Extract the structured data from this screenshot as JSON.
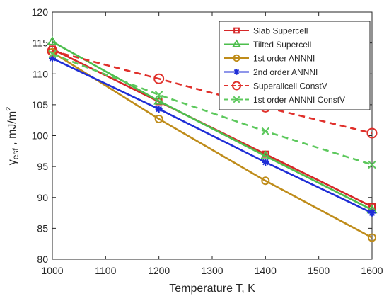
{
  "chart_data": {
    "type": "line",
    "title": "",
    "xlabel": "Temperature T, K",
    "ylabel": {
      "symbol": "γ",
      "subscript": "esf",
      "rest": " , mJ/m",
      "superscript": "2"
    },
    "xlim": [
      1000,
      1600
    ],
    "ylim": [
      80,
      120
    ],
    "x": [
      1000,
      1200,
      1400,
      1600
    ],
    "xticks": [
      "1000",
      "1100",
      "1200",
      "1300",
      "1400",
      "1500",
      "1600"
    ],
    "yticks": [
      "80",
      "85",
      "90",
      "95",
      "100",
      "105",
      "110",
      "115",
      "120"
    ],
    "grid": false,
    "legend_position": "top-right",
    "series": [
      {
        "name": "Slab Supercell",
        "values": [
          114.0,
          105.5,
          97.0,
          88.5
        ],
        "color": "#d62728",
        "dash": "solid",
        "marker": "square"
      },
      {
        "name": "Tilted Supercell",
        "values": [
          115.2,
          105.6,
          96.7,
          88.0
        ],
        "color": "#4dbe4d",
        "dash": "solid",
        "marker": "triangle"
      },
      {
        "name": "1st order ANNNI",
        "values": [
          113.5,
          102.7,
          92.7,
          83.5
        ],
        "color": "#bf8c1a",
        "dash": "solid",
        "marker": "circle"
      },
      {
        "name": "2nd order ANNNI",
        "values": [
          112.5,
          104.3,
          95.7,
          87.5
        ],
        "color": "#1f2ed6",
        "dash": "solid",
        "marker": "asterisk"
      },
      {
        "name": "Superallcell ConstV",
        "values": [
          113.7,
          109.2,
          104.6,
          100.4
        ],
        "color": "#e0302b",
        "dash": "dashed",
        "marker": "circle"
      },
      {
        "name": "1st order ANNNI ConstV",
        "values": [
          113.2,
          106.6,
          100.7,
          95.3
        ],
        "color": "#5cc85c",
        "dash": "dashed",
        "marker": "x"
      }
    ]
  }
}
